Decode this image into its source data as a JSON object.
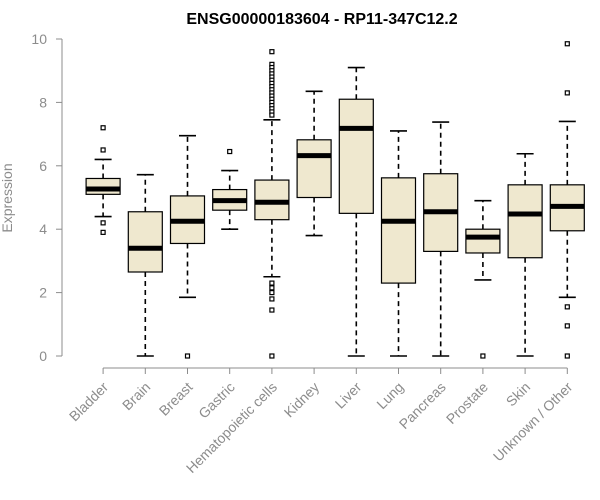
{
  "chart_data": {
    "type": "boxplot",
    "title": "ENSG00000183604 - RP11-347C12.2",
    "xlabel": "",
    "ylabel": "Expression",
    "ylim": [
      0,
      10
    ],
    "yticks": [
      0,
      2,
      4,
      6,
      8,
      10
    ],
    "grid": false,
    "colors": {
      "box_fill": "#efe8cf",
      "stroke": "#000000",
      "axis": "#8c8c8c"
    },
    "categories": [
      "Bladder",
      "Brain",
      "Breast",
      "Gastric",
      "Hematopoietic cells",
      "Kidney",
      "Liver",
      "Lung",
      "Pancreas",
      "Prostate",
      "Skin",
      "Unknown / Other"
    ],
    "boxes": [
      {
        "category": "Bladder",
        "whisker_low": 4.4,
        "q1": 5.1,
        "median": 5.27,
        "q3": 5.6,
        "whisker_high": 6.2,
        "outliers": [
          7.2,
          6.5,
          4.2,
          3.9
        ]
      },
      {
        "category": "Brain",
        "whisker_low": 0.0,
        "q1": 2.65,
        "median": 3.4,
        "q3": 4.55,
        "whisker_high": 5.72,
        "outliers": []
      },
      {
        "category": "Breast",
        "whisker_low": 1.85,
        "q1": 3.55,
        "median": 4.25,
        "q3": 5.05,
        "whisker_high": 6.95,
        "outliers": [
          0.0
        ]
      },
      {
        "category": "Gastric",
        "whisker_low": 4.0,
        "q1": 4.6,
        "median": 4.9,
        "q3": 5.25,
        "whisker_high": 5.85,
        "outliers": [
          6.45
        ]
      },
      {
        "category": "Hematopoietic cells",
        "whisker_low": 2.5,
        "q1": 4.3,
        "median": 4.85,
        "q3": 5.55,
        "whisker_high": 7.45,
        "outliers": [
          9.6,
          9.2,
          9.1,
          9.0,
          8.9,
          8.8,
          8.7,
          8.6,
          8.5,
          8.4,
          8.3,
          8.2,
          8.1,
          8.0,
          7.9,
          7.8,
          7.7,
          7.6,
          2.3,
          2.15,
          2.0,
          1.8,
          1.45,
          0.0
        ]
      },
      {
        "category": "Kidney",
        "whisker_low": 3.8,
        "q1": 5.0,
        "median": 6.32,
        "q3": 6.82,
        "whisker_high": 8.35,
        "outliers": []
      },
      {
        "category": "Liver",
        "whisker_low": 0.0,
        "q1": 4.5,
        "median": 7.18,
        "q3": 8.1,
        "whisker_high": 9.1,
        "outliers": []
      },
      {
        "category": "Lung",
        "whisker_low": 0.0,
        "q1": 2.3,
        "median": 4.25,
        "q3": 5.62,
        "whisker_high": 7.1,
        "outliers": []
      },
      {
        "category": "Pancreas",
        "whisker_low": 0.0,
        "q1": 3.3,
        "median": 4.55,
        "q3": 5.75,
        "whisker_high": 7.38,
        "outliers": []
      },
      {
        "category": "Prostate",
        "whisker_low": 2.4,
        "q1": 3.25,
        "median": 3.75,
        "q3": 4.0,
        "whisker_high": 4.9,
        "outliers": [
          0.0
        ]
      },
      {
        "category": "Skin",
        "whisker_low": 0.0,
        "q1": 3.1,
        "median": 4.48,
        "q3": 5.4,
        "whisker_high": 6.38,
        "outliers": []
      },
      {
        "category": "Unknown / Other",
        "whisker_low": 1.85,
        "q1": 3.95,
        "median": 4.72,
        "q3": 5.4,
        "whisker_high": 7.4,
        "outliers": [
          9.85,
          8.3,
          1.55,
          0.95,
          0.0
        ]
      }
    ]
  }
}
